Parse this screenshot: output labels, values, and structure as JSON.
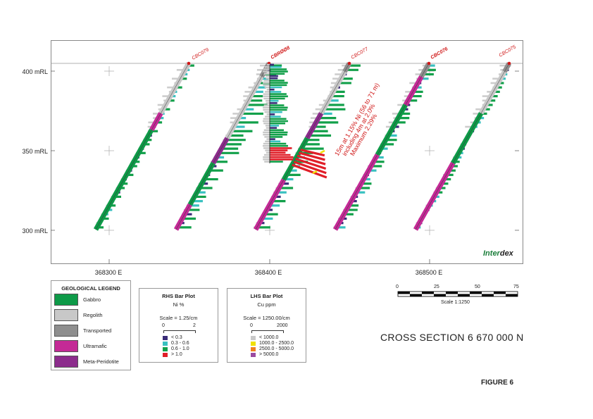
{
  "section": {
    "y_labels": [
      "400 mRL",
      "350 mRL",
      "300 mRL"
    ],
    "x_labels": [
      "368300 E",
      "368400 E",
      "368500 E"
    ],
    "holes": [
      "CBC079",
      "CBRØØ8",
      "CBC077",
      "CBC076",
      "CBC075"
    ],
    "annotation": [
      "15m at 1.15% Ni (56 to 71 m)",
      "including 4m at 2.0%",
      "Maximum 2.29%"
    ]
  },
  "logo": {
    "part1": "Inter",
    "part2": "dex"
  },
  "geo_legend": {
    "title": "GEOLOGICAL LEGEND",
    "items": [
      {
        "label": "Gabbro",
        "color": "#0e9a48"
      },
      {
        "label": "Regolith",
        "color": "#c8c8c8"
      },
      {
        "label": "Transported",
        "color": "#8e8e8e"
      },
      {
        "label": "Ultramafic",
        "color": "#c42a96"
      },
      {
        "label": "Meta-Peridotite",
        "color": "#8c2c8c"
      }
    ]
  },
  "rhs_plot": {
    "title": "RHS Bar Plot",
    "variable": "Ni %",
    "scale": "Scale = 1.25/cm",
    "axis_min": "0",
    "axis_max": "2",
    "items": [
      {
        "label": "< 0.3",
        "color": "#3a2c78"
      },
      {
        "label": "0.3 - 0.6",
        "color": "#38c0c0"
      },
      {
        "label": "0.6 - 1.0",
        "color": "#12a04a"
      },
      {
        "label": "> 1.0",
        "color": "#e01e28"
      }
    ]
  },
  "lhs_plot": {
    "title": "LHS Bar Plot",
    "variable": "Cu ppm",
    "scale": "Scale = 1250.00/cm",
    "axis_min": "0",
    "axis_max": "2000",
    "items": [
      {
        "label": "< 1000.0",
        "color": "#c8c8c8"
      },
      {
        "label": "1000.0 - 2500.0",
        "color": "#f0e000"
      },
      {
        "label": "2500.0 - 5000.0",
        "color": "#f08020"
      },
      {
        "label": "> 5000.0",
        "color": "#9a4aa0"
      }
    ]
  },
  "scale_bar": {
    "ticks": [
      "0",
      "25",
      "50",
      "75"
    ],
    "label": "Scale 1:1250"
  },
  "cross_section_title": "CROSS SECTION 6 670 000 N",
  "figure_label": "FIGURE 6"
}
